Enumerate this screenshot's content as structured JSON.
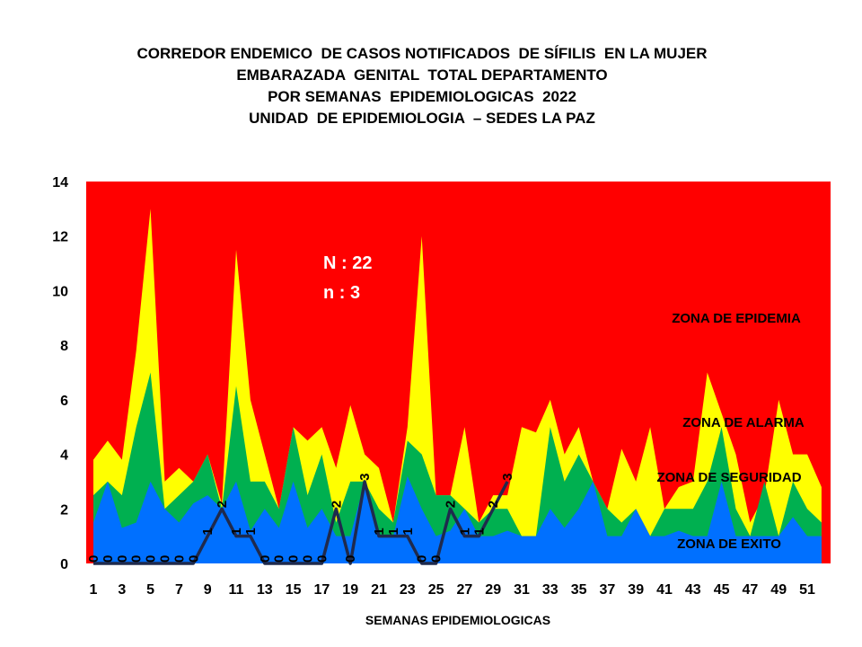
{
  "title_lines": [
    "CORREDOR ENDEMICO  DE CASOS NOTIFICADOS  DE SÍFILIS  EN LA MUJER",
    "EMBARAZADA  GENITAL  TOTAL DEPARTAMENTO",
    "POR SEMANAS  EPIDEMIOLOGICAS  2022",
    "UNIDAD  DE EPIDEMIOLOGIA  – SEDES LA PAZ"
  ],
  "annotations": {
    "N": "N : 22",
    "n": "n : 3"
  },
  "zone_labels": {
    "epidemia": "ZONA DE EPIDEMIA",
    "alarma": "ZONA DE ALARMA",
    "seguridad": "ZONA DE  SEGURIDAD",
    "exito": "ZONA DE  EXITO"
  },
  "colors": {
    "epidemia": "#ff0000",
    "alarma": "#ffff00",
    "seguridad": "#00b050",
    "exito": "#0070ff",
    "cases_line": "#1f2a4d"
  },
  "chart_data": {
    "type": "area",
    "xlabel": "SEMANAS EPIDEMIOLOGICAS",
    "ylabel": "",
    "ylim": [
      0,
      14
    ],
    "yticks": [
      0,
      2,
      4,
      6,
      8,
      10,
      12,
      14
    ],
    "xticks": [
      1,
      3,
      5,
      7,
      9,
      11,
      13,
      15,
      17,
      19,
      21,
      23,
      25,
      27,
      29,
      31,
      33,
      35,
      37,
      39,
      41,
      43,
      45,
      47,
      49,
      51
    ],
    "weeks": [
      1,
      2,
      3,
      4,
      5,
      6,
      7,
      8,
      9,
      10,
      11,
      12,
      13,
      14,
      15,
      16,
      17,
      18,
      19,
      20,
      21,
      22,
      23,
      24,
      25,
      26,
      27,
      28,
      29,
      30,
      31,
      32,
      33,
      34,
      35,
      36,
      37,
      38,
      39,
      40,
      41,
      42,
      43,
      44,
      45,
      46,
      47,
      48,
      49,
      50,
      51,
      52
    ],
    "series": [
      {
        "name": "ZONA DE EPIDEMIA",
        "top": 14
      },
      {
        "name": "ZONA DE ALARMA",
        "values": [
          3.8,
          4.5,
          3.8,
          7.8,
          13,
          3,
          3.5,
          3,
          4,
          2.2,
          11.5,
          6,
          4,
          2,
          5,
          4.5,
          5,
          3.5,
          5.8,
          4,
          3.5,
          1.5,
          5,
          12,
          2.5,
          2.5,
          5,
          1.5,
          2.5,
          2.5,
          5,
          4.8,
          6,
          4,
          5,
          3,
          2,
          4.2,
          3,
          5,
          2,
          2.8,
          3,
          7,
          5.5,
          4,
          1.5,
          2.5,
          6,
          4,
          4,
          2.8
        ]
      },
      {
        "name": "ZONA DE  SEGURIDAD",
        "values": [
          2.5,
          3,
          2.5,
          5,
          7,
          2,
          2.5,
          3,
          4,
          2,
          6.5,
          3,
          3,
          2,
          5,
          2.5,
          4,
          1.5,
          3,
          3,
          2,
          1.5,
          4.5,
          4,
          2.5,
          2.5,
          2,
          1.5,
          2,
          2,
          1,
          1,
          5,
          3,
          4,
          3,
          2,
          1.5,
          2,
          1,
          2,
          2,
          2,
          3,
          5,
          2,
          1,
          3,
          1,
          3,
          2,
          1.5
        ]
      },
      {
        "name": "ZONA DE  EXITO",
        "values": [
          1.5,
          3,
          1.3,
          1.5,
          3,
          2,
          1.5,
          2.2,
          2.5,
          2,
          3,
          1.2,
          2,
          1.3,
          3,
          1.3,
          2,
          1,
          1,
          3,
          1,
          1,
          3.2,
          2,
          1,
          1.2,
          2,
          1,
          1,
          1.2,
          1,
          1,
          2,
          1.3,
          2,
          3,
          1,
          1,
          2,
          1,
          1,
          1.2,
          1,
          1,
          3,
          1,
          1,
          1,
          1,
          1.7,
          1,
          1
        ]
      },
      {
        "name": "casos 2022",
        "values": [
          0,
          0,
          0,
          0,
          0,
          0,
          0,
          0,
          1,
          2,
          1,
          1,
          0,
          0,
          0,
          0,
          0,
          2,
          0,
          3,
          1,
          1,
          1,
          0,
          0,
          2,
          1,
          1,
          2,
          3
        ]
      }
    ]
  }
}
